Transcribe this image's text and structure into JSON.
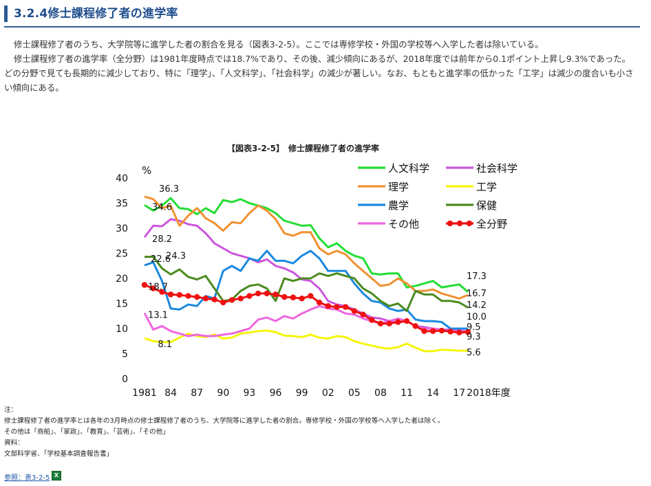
{
  "page": {
    "title": "3.2.4修士課程修了者の進学率",
    "paragraph1": "修士課程修了者のうち、大学院等に進学した者の割合を見る（図表3-2-5）。ここでは専修学校・外国の学校等へ入学した者は除いている。",
    "paragraph2": "修士課程修了者の進学率（全分野）は1981年度時点では18.7%であり、その後、減少傾向にあるが、2018年度では前年から0.1ポイント上昇し9.3%であった。どの分野で見ても長期的に減少しており、特に「理学」、「人文科学」、「社会科学」の減少が著しい。なお、もともと進学率の低かった「工学」は減少の度合いも小さい傾向にある。",
    "figure_caption": "【図表3-2-5】　修士課程修了者の進学率",
    "notes": {
      "label": "注：",
      "line1": "修士課程修了者の進学率とは各年の3月時点の修士課程修了者のうち、大学院等に進学した者の割合。専修学校・外国の学校等へ入学した者は除く。",
      "line2": "その他は「商船」、「家政」、「教育」、「芸術」、「その他」",
      "source_label": "資料：",
      "source": "文部科学省、「学校基本調査報告書」"
    },
    "reference_link": "参照：表3-2-5",
    "excel_icon": "excel-file-icon"
  },
  "chart_data": {
    "type": "line",
    "ylabel": "%",
    "ylim": [
      0,
      40
    ],
    "yticks": [
      0,
      5,
      10,
      15,
      20,
      25,
      30,
      35,
      40
    ],
    "x_tick_labels": [
      "1981",
      "84",
      "87",
      "90",
      "93",
      "96",
      "99",
      "02",
      "05",
      "08",
      "11",
      "14",
      "17"
    ],
    "x_tick_years": [
      1981,
      1984,
      1987,
      1990,
      1993,
      1996,
      1999,
      2002,
      2005,
      2008,
      2011,
      2014,
      2017
    ],
    "x_end_label": "2018年度",
    "grid": false,
    "legend_position": "top-right",
    "x": [
      1981,
      1982,
      1983,
      1984,
      1985,
      1986,
      1987,
      1988,
      1989,
      1990,
      1991,
      1992,
      1993,
      1994,
      1995,
      1996,
      1997,
      1998,
      1999,
      2000,
      2001,
      2002,
      2003,
      2004,
      2005,
      2006,
      2007,
      2008,
      2009,
      2010,
      2011,
      2012,
      2013,
      2014,
      2015,
      2016,
      2017,
      2018
    ],
    "series": [
      {
        "name": "人文科学",
        "color": "#22dd33",
        "marker": false,
        "label_start": "34.6",
        "label_end": "17.3",
        "values": [
          34.6,
          33.5,
          34.5,
          36.0,
          34.0,
          33.8,
          32.8,
          34.0,
          33.0,
          35.6,
          35.2,
          35.8,
          35.0,
          34.5,
          34.0,
          33.0,
          31.5,
          31.0,
          30.5,
          30.6,
          28.0,
          26.2,
          27.0,
          25.5,
          24.5,
          24.0,
          21.0,
          20.8,
          21.0,
          21.0,
          18.2,
          18.5,
          19.0,
          19.5,
          18.2,
          18.5,
          18.8,
          17.3
        ]
      },
      {
        "name": "社会科学",
        "color": "#cc55dd",
        "marker": false,
        "label_start": "28.2",
        "label_end": "",
        "values": [
          28.2,
          30.5,
          30.4,
          31.8,
          31.5,
          30.8,
          30.5,
          29.0,
          27.0,
          26.0,
          25.0,
          24.5,
          24.0,
          23.2,
          23.8,
          22.5,
          22.0,
          21.2,
          19.8,
          19.5,
          18.0,
          15.5,
          14.8,
          14.5,
          13.8,
          13.0,
          12.2,
          12.0,
          11.5,
          11.2,
          11.5,
          10.5,
          10.3,
          10.0,
          9.8,
          9.8,
          9.6,
          9.5
        ]
      },
      {
        "name": "理学",
        "color": "#f09030",
        "marker": false,
        "label_start": "36.3",
        "label_end": "16.7",
        "values": [
          36.3,
          35.8,
          34.0,
          34.5,
          30.5,
          32.5,
          34.0,
          32.0,
          31.0,
          29.5,
          31.2,
          31.0,
          33.0,
          34.5,
          33.5,
          31.8,
          29.0,
          28.5,
          29.2,
          29.2,
          26.0,
          24.8,
          25.5,
          24.8,
          23.0,
          21.5,
          20.0,
          18.5,
          18.8,
          20.0,
          19.0,
          17.5,
          17.5,
          17.8,
          17.0,
          16.5,
          16.0,
          16.7
        ]
      },
      {
        "name": "工学",
        "color": "#f5f50a",
        "marker": false,
        "label_start": "8.1",
        "label_end": "5.6",
        "values": [
          8.1,
          7.5,
          7.3,
          7.3,
          8.2,
          9.0,
          8.5,
          8.3,
          8.8,
          8.0,
          8.2,
          9.0,
          9.2,
          9.5,
          9.6,
          9.3,
          8.6,
          8.5,
          8.3,
          8.8,
          8.2,
          8.0,
          8.5,
          8.3,
          7.5,
          7.0,
          6.6,
          6.2,
          6.0,
          6.3,
          7.0,
          6.2,
          5.5,
          5.5,
          5.8,
          5.7,
          5.6,
          5.6
        ]
      },
      {
        "name": "農学",
        "color": "#1a88e0",
        "marker": false,
        "label_start": "22.6",
        "label_end": "10.0",
        "values": [
          22.6,
          23.2,
          19.5,
          14.0,
          13.8,
          14.8,
          14.5,
          16.5,
          16.0,
          21.5,
          22.5,
          21.5,
          24.0,
          23.5,
          25.5,
          23.5,
          23.5,
          23.0,
          24.5,
          25.5,
          24.0,
          21.5,
          21.5,
          21.5,
          19.0,
          17.0,
          15.5,
          15.2,
          14.0,
          13.5,
          13.8,
          11.8,
          11.5,
          11.5,
          11.3,
          10.0,
          10.0,
          10.0
        ]
      },
      {
        "name": "保健",
        "color": "#4a8a1e",
        "marker": false,
        "label_start": "24.3",
        "label_end": "14.2",
        "values": [
          24.3,
          24.3,
          22.0,
          20.8,
          21.8,
          20.3,
          19.8,
          20.5,
          18.0,
          15.5,
          15.8,
          17.5,
          18.5,
          18.8,
          18.0,
          15.5,
          20.0,
          19.5,
          20.0,
          20.0,
          21.0,
          20.5,
          21.0,
          20.5,
          20.0,
          18.0,
          17.0,
          15.5,
          14.5,
          15.0,
          13.5,
          17.5,
          16.8,
          16.8,
          15.5,
          15.5,
          15.2,
          14.2
        ]
      },
      {
        "name": "その他",
        "color": "#ee66dd",
        "marker": false,
        "label_start": "13.1",
        "label_end": "",
        "values": [
          13.1,
          9.8,
          10.5,
          9.5,
          9.0,
          8.5,
          8.8,
          8.5,
          8.5,
          8.8,
          9.0,
          9.5,
          10.0,
          11.8,
          12.2,
          11.5,
          12.5,
          12.0,
          13.0,
          13.8,
          14.5,
          14.0,
          13.8,
          13.0,
          12.8,
          12.0,
          11.5,
          11.0,
          11.5,
          12.0,
          11.5,
          10.5,
          10.0,
          10.0,
          9.8,
          9.5,
          9.5,
          9.5
        ]
      },
      {
        "name": "全分野",
        "color": "#ee1111",
        "marker": true,
        "label_start": "18.7",
        "label_end": "9.3",
        "values": [
          18.7,
          18.0,
          17.3,
          16.8,
          16.7,
          16.5,
          16.3,
          16.0,
          15.8,
          15.2,
          15.7,
          16.0,
          16.5,
          17.0,
          17.0,
          16.8,
          16.3,
          16.2,
          16.0,
          16.5,
          15.2,
          14.5,
          14.3,
          14.3,
          13.5,
          12.8,
          11.7,
          11.0,
          11.0,
          11.3,
          11.5,
          10.5,
          9.5,
          9.5,
          9.6,
          9.4,
          9.2,
          9.3
        ]
      }
    ],
    "end_labels_extra": [
      "9.5"
    ]
  }
}
